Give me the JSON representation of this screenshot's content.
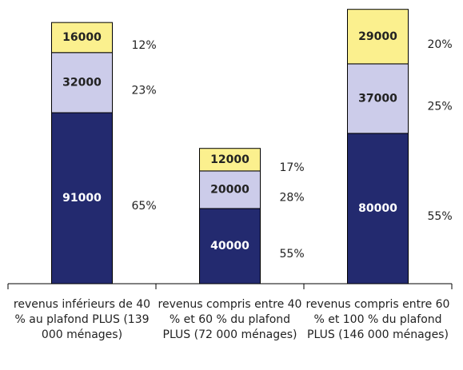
{
  "chart_data": {
    "type": "stacked_bar",
    "categories": [
      "revenus inférieurs de 40 % au plafond PLUS (139 000 ménages)",
      "revenus compris entre 40 % et 60 % du plafond PLUS (72 000 ménages)",
      "revenus compris entre 60 % et 100 % du plafond PLUS (146 000 ménages)"
    ],
    "series": [
      {
        "color": "#232a6f",
        "label_color": "#ffffff",
        "values": [
          91000,
          40000,
          80000
        ],
        "share_labels": [
          "65%",
          "55%",
          "55%"
        ]
      },
      {
        "color": "#ccccea",
        "label_color": "#222222",
        "values": [
          32000,
          20000,
          37000
        ],
        "share_labels": [
          "23%",
          "28%",
          "25%"
        ]
      },
      {
        "color": "#fbf08e",
        "label_color": "#222222",
        "values": [
          16000,
          12000,
          29000
        ],
        "share_labels": [
          "12%",
          "17%",
          "20%"
        ]
      }
    ],
    "ylim": [
      0,
      148000
    ]
  }
}
